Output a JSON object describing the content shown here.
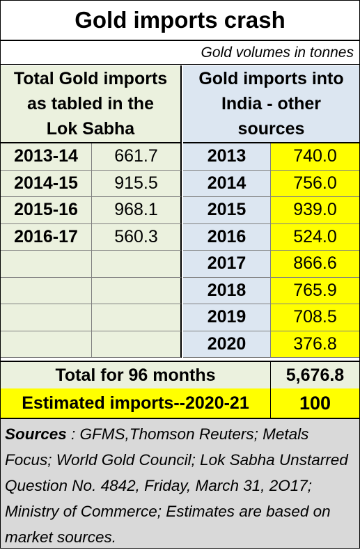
{
  "title": "Gold imports crash",
  "subtitle": "Gold volumes in tonnes",
  "headers": {
    "left": [
      "Total Gold imports",
      "as tabled in the",
      "Lok Sabha"
    ],
    "right": [
      "Gold imports into",
      "India - other",
      "sources"
    ]
  },
  "rows": [
    {
      "fy": "2013-14",
      "fy_value": "661.7",
      "year": "2013",
      "year_value": "740.0"
    },
    {
      "fy": "2014-15",
      "fy_value": "915.5",
      "year": "2014",
      "year_value": "756.0"
    },
    {
      "fy": "2015-16",
      "fy_value": "968.1",
      "year": "2015",
      "year_value": "939.0"
    },
    {
      "fy": "2016-17",
      "fy_value": "560.3",
      "year": "2016",
      "year_value": "524.0"
    },
    {
      "fy": "",
      "fy_value": "",
      "year": "2017",
      "year_value": "866.6"
    },
    {
      "fy": "",
      "fy_value": "",
      "year": "2018",
      "year_value": "765.9"
    },
    {
      "fy": "",
      "fy_value": "",
      "year": "2019",
      "year_value": "708.5"
    },
    {
      "fy": "",
      "fy_value": "",
      "year": "2020",
      "year_value": "376.8"
    }
  ],
  "total": {
    "label": "Total for 96 months",
    "value": "5,676.8"
  },
  "estimate": {
    "label": "Estimated imports--2020-21",
    "value": "100"
  },
  "sources": {
    "label": "Sources",
    "text": " : GFMS,Thomson Reuters; Metals Focus; World Gold Council; Lok Sabha Unstarred Question No.  4842, Friday, March 31, 2O17; Ministry of Commerce; Estimates are based on market sources."
  },
  "colors": {
    "left_panel": "#ebf1de",
    "right_panel": "#dce6f1",
    "highlight": "#ffff00",
    "sources_bg": "#d9d9d9"
  }
}
